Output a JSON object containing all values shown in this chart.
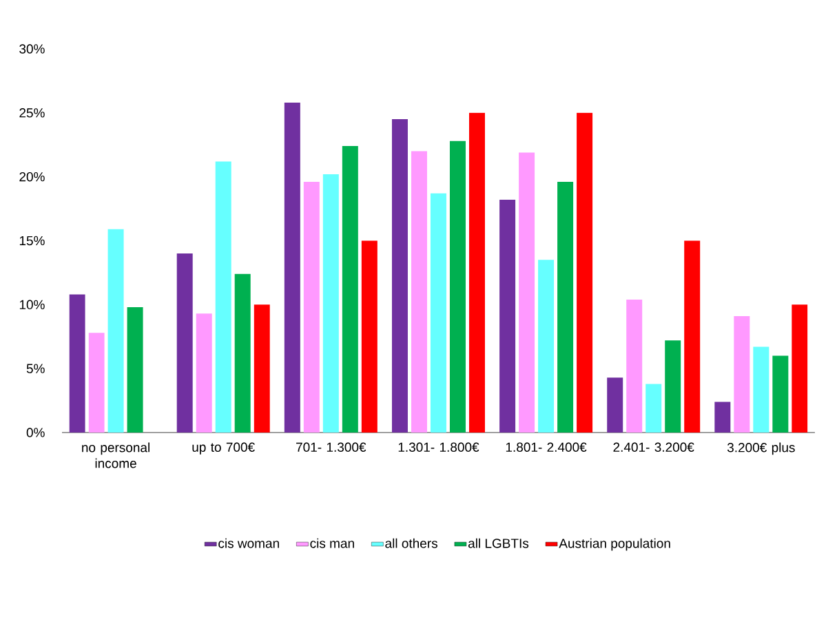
{
  "chart_data": {
    "type": "bar",
    "categories": [
      "no personal income",
      "up to 700€",
      "701- 1.300€",
      "1.301- 1.800€",
      "1.801- 2.400€",
      "2.401- 3.200€",
      "3.200€ plus"
    ],
    "series": [
      {
        "name": "cis woman",
        "color": "#7030a0",
        "values": [
          10.8,
          14.0,
          25.8,
          24.5,
          18.2,
          4.3,
          2.4
        ]
      },
      {
        "name": "cis man",
        "color": "#ff99ff",
        "values": [
          7.8,
          9.3,
          19.6,
          22.0,
          21.9,
          10.4,
          9.1
        ]
      },
      {
        "name": "all others",
        "color": "#66ffff",
        "values": [
          15.9,
          21.2,
          20.2,
          18.7,
          13.5,
          3.8,
          6.7
        ]
      },
      {
        "name": "all LGBTIs",
        "color": "#00b050",
        "values": [
          9.8,
          12.4,
          22.4,
          22.8,
          19.6,
          7.2,
          6.0
        ]
      },
      {
        "name": "Austrian population",
        "color": "#ff0000",
        "values": [
          null,
          10.0,
          15.0,
          25.0,
          25.0,
          15.0,
          10.0
        ]
      }
    ],
    "ylim": [
      0,
      30
    ],
    "yticks": [
      {
        "value": 0,
        "label": "0%"
      },
      {
        "value": 5,
        "label": "5%"
      },
      {
        "value": 10,
        "label": "10%"
      },
      {
        "value": 15,
        "label": "15%"
      },
      {
        "value": 20,
        "label": "20%"
      },
      {
        "value": 25,
        "label": "25%"
      },
      {
        "value": 30,
        "label": "30%"
      }
    ],
    "legend": "bottom"
  }
}
